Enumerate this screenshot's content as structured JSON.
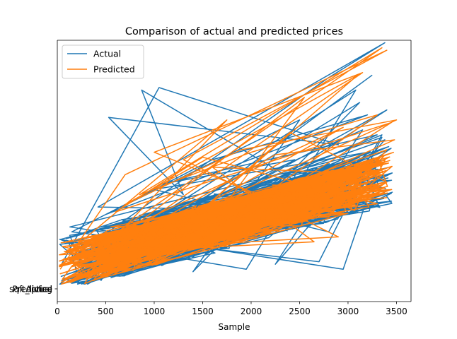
{
  "chart_data": {
    "type": "line",
    "title": "Comparison of actual and predicted prices",
    "xlabel": "Sample",
    "ylabel": "",
    "xlim": [
      0,
      3650
    ],
    "ylim": [
      -0.5,
      10
    ],
    "x_ticks": [
      0,
      500,
      1000,
      1500,
      2000,
      2500,
      3000,
      3500
    ],
    "x_tick_labels": [
      "0",
      "500",
      "1000",
      "1500",
      "2000",
      "2500",
      "3000",
      "3500"
    ],
    "y_tick_overlap_labels": [
      "price",
      "sqft_living",
      "Actual",
      "Predicted"
    ],
    "legend": {
      "position": "top-left",
      "entries": [
        "Actual",
        "Predicted"
      ]
    },
    "colors": {
      "Actual": "#1f77b4",
      "Predicted": "#ff7f0e"
    },
    "series": [
      {
        "name": "Actual",
        "x": [
          30,
          1050,
          2900,
          530,
          1300,
          870,
          3000,
          120,
          2800,
          3380,
          420,
          1800,
          3400,
          350,
          2450,
          1050,
          3300,
          220,
          3080,
          1950,
          280,
          3350,
          2700,
          150,
          1600,
          3200,
          500,
          2500,
          1400,
          3120,
          600,
          2250,
          3380,
          200,
          3300,
          2950,
          130,
          3200,
          1000,
          2800,
          3350,
          80,
          3150,
          2250,
          3380,
          1700,
          3420,
          350,
          3250
        ],
        "y": [
          0.9,
          8.1,
          5.8,
          6.9,
          3.8,
          8.0,
          3.1,
          1.2,
          8.5,
          9.9,
          3.3,
          3.2,
          7.2,
          0.6,
          5.2,
          4.2,
          6.2,
          0.9,
          8.0,
          0.8,
          1.9,
          6.1,
          1.1,
          2.3,
          5.2,
          7.0,
          3.0,
          6.8,
          0.7,
          7.5,
          1.5,
          4.6,
          5.1,
          0.3,
          4.8,
          0.8,
          2.5,
          5.5,
          4.0,
          2.3,
          6.2,
          1.0,
          6.4,
          1.0,
          6.0,
          3.7,
          4.6,
          0.3,
          8.6
        ]
      },
      {
        "name": "Predicted",
        "x": [
          30,
          700,
          3400,
          1300,
          2900,
          120,
          1750,
          400,
          3150,
          1000,
          2200,
          3450,
          600,
          1500,
          2650,
          250,
          3350,
          850,
          2000,
          3300,
          1450,
          2550,
          300,
          3500,
          1900,
          700,
          3100,
          1200,
          2400,
          3400,
          900,
          2950,
          150,
          2650,
          1600,
          3350,
          450,
          2250,
          3480,
          1050,
          3200,
          550,
          2800,
          3400,
          200,
          3450,
          1700,
          3300,
          2100
        ],
        "y": [
          0.8,
          4.6,
          9.6,
          5.2,
          2.1,
          1.5,
          6.8,
          1.3,
          8.7,
          5.5,
          3.6,
          6.7,
          3.1,
          5.3,
          4.1,
          1.3,
          9.7,
          3.8,
          5.5,
          7.0,
          1.9,
          7.7,
          1.1,
          6.8,
          5.6,
          3.4,
          8.6,
          2.2,
          6.3,
          4.3,
          2.0,
          6.5,
          1.4,
          1.9,
          4.9,
          4.6,
          1.4,
          5.4,
          6.0,
          1.8,
          4.5,
          2.5,
          2.9,
          5.6,
          1.3,
          4.0,
          3.6,
          3.8,
          2.8
        ]
      }
    ]
  }
}
